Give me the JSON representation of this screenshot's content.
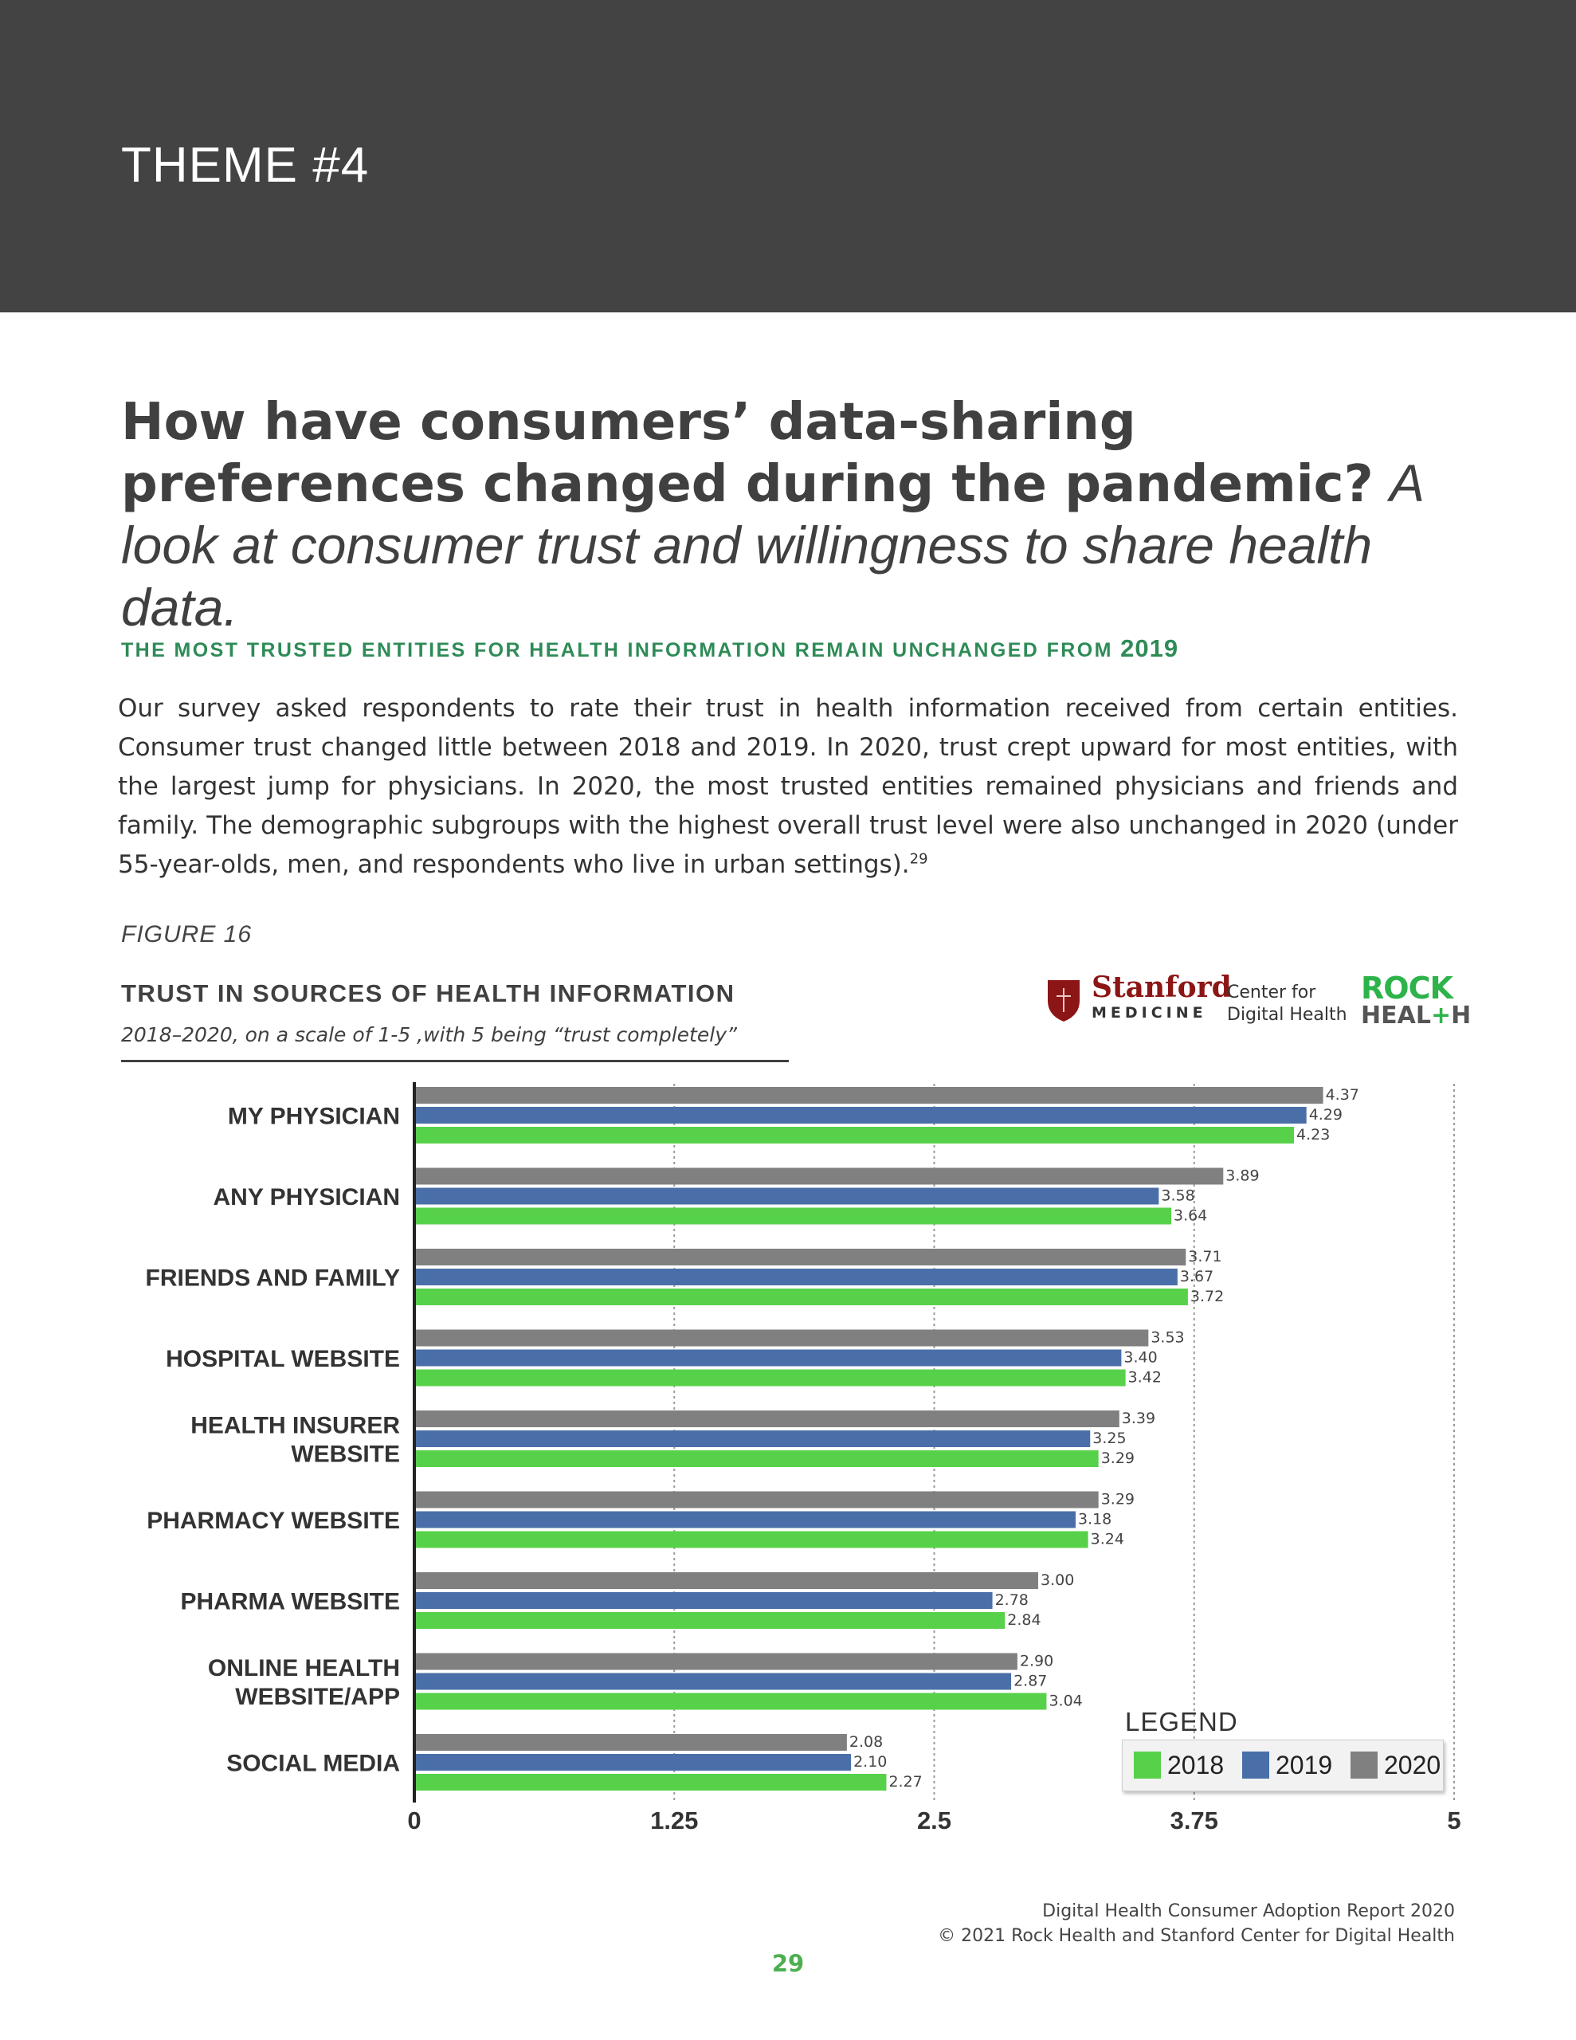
{
  "header": {
    "theme": "THEME #4"
  },
  "headline": {
    "bold": "How have consumers’ data-sharing preferences changed during the pandemic?",
    "italic": "A look at consumer trust and willingness to share health data."
  },
  "subheading": {
    "text": "THE MOST TRUSTED ENTITIES FOR HEALTH INFORMATION REMAIN UNCHANGED FROM",
    "year": "2019"
  },
  "body": {
    "text": "Our survey asked respondents to rate their trust in health information received from certain entities. Consumer trust changed little between 2018 and 2019. In 2020, trust crept upward for most entities, with the largest jump for physicians. In 2020, the most trusted entities remained physicians and friends and family. The demographic subgroups with the highest overall trust level were also unchanged in 2020 (under 55-year-olds, men, and respondents who live in urban settings).",
    "footnote": "29"
  },
  "figure_label": "FIGURE 16",
  "logos": {
    "stanford": "Stanford",
    "medicine": "MEDICINE",
    "center_line1": "Center for",
    "center_line2": "Digital Health",
    "rock": "ROCK",
    "health_a": "HEAL",
    "health_plus": "+",
    "health_b": "H"
  },
  "legend": {
    "title": "LEGEND"
  },
  "colors": {
    "2018": "#57d14a",
    "2019": "#4a6fa8",
    "2020": "#808080",
    "band": "#434343",
    "accent": "#2e8b57"
  },
  "chart_data": {
    "type": "bar",
    "orientation": "horizontal",
    "title": "TRUST IN SOURCES OF HEALTH INFORMATION",
    "subtitle": "2018–2020, on a scale of 1-5 ,with 5 being “trust completely”",
    "categories": [
      [
        "MY PHYSICIAN"
      ],
      [
        "ANY PHYSICIAN"
      ],
      [
        "FRIENDS AND FAMILY"
      ],
      [
        "HOSPITAL WEBSITE"
      ],
      [
        "HEALTH INSURER",
        "WEBSITE"
      ],
      [
        "PHARMACY WEBSITE"
      ],
      [
        "PHARMA WEBSITE"
      ],
      [
        "ONLINE HEALTH",
        "WEBSITE/APP"
      ],
      [
        "SOCIAL MEDIA"
      ]
    ],
    "series": [
      {
        "name": "2020",
        "values": [
          4.37,
          3.89,
          3.71,
          3.53,
          3.39,
          3.29,
          3.0,
          2.9,
          2.08
        ],
        "labels": [
          "4.37",
          "3.89",
          "3.71",
          "3.53",
          "3.39",
          "3.29",
          "3.00",
          "2.90",
          "2.08"
        ]
      },
      {
        "name": "2019",
        "values": [
          4.29,
          3.58,
          3.67,
          3.4,
          3.25,
          3.18,
          2.78,
          2.87,
          2.1
        ],
        "labels": [
          "4.29",
          "3.58",
          "3.67",
          "3.40",
          "3.25",
          "3.18",
          "2.78",
          "2.87",
          "2.10"
        ]
      },
      {
        "name": "2018",
        "values": [
          4.23,
          3.64,
          3.72,
          3.42,
          3.29,
          3.24,
          2.84,
          3.04,
          2.27
        ],
        "labels": [
          "4.23",
          "3.64",
          "3.72",
          "3.42",
          "3.29",
          "3.24",
          "2.84",
          "3.04",
          "2.27"
        ]
      }
    ],
    "legend_order": [
      "2018",
      "2019",
      "2020"
    ],
    "xlim": [
      0,
      5
    ],
    "xticks": [
      "0",
      "1.25",
      "2.5",
      "3.75",
      "5"
    ],
    "xtick_values": [
      0,
      1.25,
      2.5,
      3.75,
      5
    ],
    "grid": "dotted vertical",
    "legend_position": "bottom-right"
  },
  "footer": {
    "line1": "Digital Health Consumer Adoption Report 2020",
    "line2": "© 2021 Rock Health and Stanford Center for Digital Health",
    "page": "29"
  }
}
